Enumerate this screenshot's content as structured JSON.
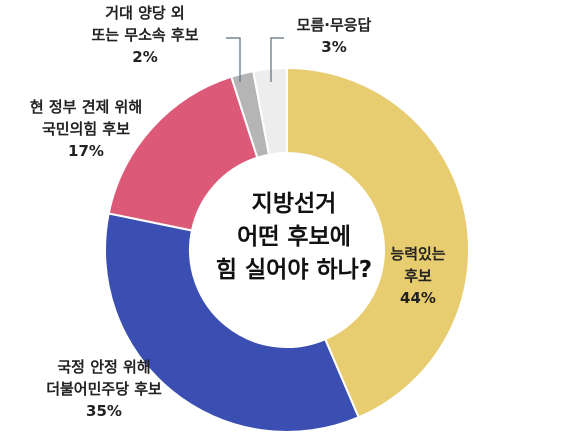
{
  "chart_data": {
    "type": "pie",
    "style": "donut",
    "center_title": [
      "지방선거",
      "어떤 후보에",
      "힘 실어야 하나?"
    ],
    "slices": [
      {
        "label_lines": [
          "능력있는",
          "후보"
        ],
        "value": 44,
        "value_label": "44%",
        "color": "#E8CC70"
      },
      {
        "label_lines": [
          "국정 안정 위해",
          "더불어민주당 후보"
        ],
        "value": 35,
        "value_label": "35%",
        "color": "#3B4FB3"
      },
      {
        "label_lines": [
          "현 정부 견제 위해",
          "국민의힘 후보"
        ],
        "value": 17,
        "value_label": "17%",
        "color": "#DC5A78"
      },
      {
        "label_lines": [
          "거대 양당 외",
          "또는 무소속 후보"
        ],
        "value": 2,
        "value_label": "2%",
        "color": "#B5B5B5"
      },
      {
        "label_lines": [
          "모름·무응답"
        ],
        "value": 3,
        "value_label": "3%",
        "color": "#EDEDED"
      }
    ]
  }
}
